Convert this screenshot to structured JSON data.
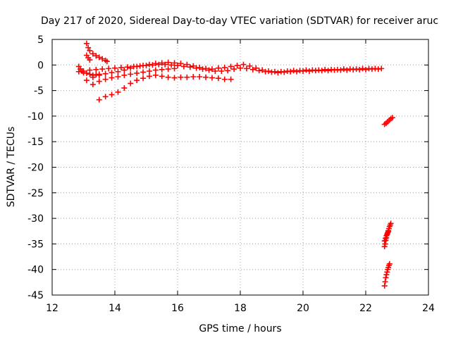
{
  "chart_data": {
    "type": "scatter",
    "title": "Day 217 of 2020, Sidereal Day-to-day VTEC variation (SDTVAR) for receiver aruc",
    "xlabel": "GPS time / hours",
    "ylabel": "SDTVAR / TECUs",
    "xlim": [
      12,
      24
    ],
    "ylim": [
      -45,
      5
    ],
    "xticks": [
      "12",
      "14",
      "16",
      "18",
      "20",
      "22",
      "24"
    ],
    "yticks": [
      "5",
      "0",
      "-5",
      "-10",
      "-15",
      "-20",
      "-25",
      "-30",
      "-35",
      "-40",
      "-45"
    ],
    "xtick_values": [
      12,
      14,
      16,
      18,
      20,
      22,
      24
    ],
    "ytick_values": [
      5,
      0,
      -5,
      -10,
      -15,
      -20,
      -25,
      -30,
      -35,
      -40,
      -45
    ],
    "grid": true,
    "legend": "none",
    "marker": "plus",
    "color": "#ff0000",
    "series": [
      {
        "points": [
          [
            13.1,
            4.2
          ],
          [
            13.15,
            3.4
          ],
          [
            13.2,
            2.8
          ],
          [
            13.3,
            2.2
          ],
          [
            13.4,
            1.8
          ],
          [
            13.5,
            1.5
          ],
          [
            13.6,
            1.2
          ],
          [
            13.7,
            0.9
          ],
          [
            13.75,
            0.7
          ]
        ]
      },
      {
        "points": [
          [
            13.1,
            1.9
          ],
          [
            13.15,
            1.4
          ],
          [
            13.2,
            1.0
          ]
        ]
      },
      {
        "points": [
          [
            12.85,
            -0.3
          ],
          [
            12.9,
            -0.8
          ],
          [
            12.95,
            -1.2
          ],
          [
            13.0,
            -1.5
          ],
          [
            13.1,
            -1.6
          ],
          [
            13.2,
            -1.8
          ],
          [
            13.3,
            -2.0
          ],
          [
            13.4,
            -1.9
          ],
          [
            13.5,
            -1.8
          ]
        ]
      },
      {
        "points": [
          [
            13.1,
            -3.0
          ],
          [
            13.3,
            -2.4
          ],
          [
            13.5,
            -2.0
          ],
          [
            13.7,
            -1.7
          ],
          [
            13.9,
            -1.5
          ],
          [
            14.1,
            -1.3
          ],
          [
            14.3,
            -1.0
          ],
          [
            14.5,
            -0.6
          ],
          [
            14.7,
            -0.3
          ],
          [
            14.9,
            -0.1
          ],
          [
            15.1,
            0.1
          ],
          [
            15.3,
            0.3
          ],
          [
            15.5,
            0.4
          ],
          [
            15.7,
            0.5
          ],
          [
            15.9,
            0.4
          ],
          [
            16.1,
            0.3
          ],
          [
            16.3,
            0.1
          ],
          [
            16.5,
            -0.2
          ],
          [
            16.7,
            -0.5
          ],
          [
            16.9,
            -0.7
          ],
          [
            17.1,
            -0.8
          ],
          [
            17.3,
            -0.6
          ],
          [
            17.5,
            -0.5
          ],
          [
            17.7,
            -0.3
          ],
          [
            17.9,
            -0.1
          ],
          [
            18.1,
            0.1
          ],
          [
            18.3,
            -0.2
          ],
          [
            18.5,
            -0.6
          ],
          [
            18.7,
            -1.0
          ],
          [
            18.9,
            -1.2
          ],
          [
            19.1,
            -1.3
          ],
          [
            19.3,
            -1.3
          ],
          [
            19.5,
            -1.2
          ],
          [
            19.7,
            -1.1
          ],
          [
            19.9,
            -1.1
          ],
          [
            20.1,
            -1.0
          ],
          [
            20.3,
            -1.0
          ],
          [
            20.5,
            -1.0
          ],
          [
            20.7,
            -0.9
          ],
          [
            20.9,
            -0.9
          ],
          [
            21.1,
            -0.9
          ],
          [
            21.3,
            -0.8
          ],
          [
            21.5,
            -0.8
          ],
          [
            21.7,
            -0.8
          ],
          [
            21.9,
            -0.7
          ],
          [
            22.1,
            -0.7
          ],
          [
            22.3,
            -0.7
          ],
          [
            22.5,
            -0.7
          ]
        ]
      },
      {
        "points": [
          [
            12.85,
            -1.3
          ],
          [
            13.0,
            -1.2
          ],
          [
            13.2,
            -1.0
          ],
          [
            13.4,
            -0.9
          ],
          [
            13.6,
            -0.8
          ],
          [
            13.8,
            -0.7
          ],
          [
            14.0,
            -0.6
          ],
          [
            14.2,
            -0.5
          ],
          [
            14.4,
            -0.4
          ],
          [
            14.6,
            -0.3
          ],
          [
            14.8,
            -0.2
          ],
          [
            15.0,
            -0.1
          ],
          [
            15.2,
            0.0
          ],
          [
            15.4,
            0.1
          ],
          [
            15.6,
            0.1
          ],
          [
            15.8,
            0.0
          ],
          [
            16.0,
            -0.1
          ],
          [
            16.2,
            -0.3
          ],
          [
            16.4,
            -0.4
          ],
          [
            16.6,
            -0.6
          ],
          [
            16.8,
            -0.8
          ],
          [
            17.0,
            -1.0
          ],
          [
            17.2,
            -1.2
          ],
          [
            17.4,
            -1.2
          ],
          [
            17.6,
            -1.1
          ],
          [
            17.8,
            -0.8
          ],
          [
            18.0,
            -0.6
          ],
          [
            18.2,
            -0.7
          ],
          [
            18.4,
            -0.9
          ],
          [
            18.6,
            -1.1
          ],
          [
            18.8,
            -1.3
          ],
          [
            19.0,
            -1.4
          ],
          [
            19.2,
            -1.5
          ],
          [
            19.4,
            -1.4
          ],
          [
            19.6,
            -1.3
          ],
          [
            19.8,
            -1.3
          ],
          [
            20.0,
            -1.2
          ],
          [
            20.2,
            -1.2
          ],
          [
            20.4,
            -1.1
          ],
          [
            20.6,
            -1.1
          ],
          [
            20.8,
            -1.1
          ],
          [
            21.0,
            -1.0
          ],
          [
            21.2,
            -1.0
          ],
          [
            21.4,
            -1.0
          ],
          [
            21.6,
            -0.9
          ],
          [
            21.8,
            -0.9
          ],
          [
            22.0,
            -0.9
          ],
          [
            22.2,
            -0.8
          ],
          [
            22.4,
            -0.8
          ]
        ]
      },
      {
        "points": [
          [
            13.3,
            -3.8
          ],
          [
            13.5,
            -3.2
          ],
          [
            13.7,
            -2.8
          ],
          [
            13.9,
            -2.5
          ],
          [
            14.1,
            -2.3
          ],
          [
            14.3,
            -2.0
          ],
          [
            14.5,
            -1.8
          ],
          [
            14.7,
            -1.6
          ],
          [
            14.9,
            -1.4
          ],
          [
            15.1,
            -1.2
          ],
          [
            15.3,
            -1.0
          ],
          [
            15.5,
            -0.9
          ],
          [
            15.7,
            -0.8
          ],
          [
            15.9,
            -0.7
          ]
        ]
      },
      {
        "points": [
          [
            13.5,
            -6.8
          ],
          [
            13.7,
            -6.2
          ],
          [
            13.9,
            -5.8
          ],
          [
            14.1,
            -5.3
          ],
          [
            14.3,
            -4.5
          ],
          [
            14.5,
            -3.6
          ],
          [
            14.7,
            -3.0
          ],
          [
            14.9,
            -2.6
          ],
          [
            15.1,
            -2.2
          ],
          [
            15.3,
            -2.0
          ],
          [
            15.5,
            -2.2
          ],
          [
            15.7,
            -2.4
          ],
          [
            15.9,
            -2.5
          ],
          [
            16.1,
            -2.4
          ],
          [
            16.3,
            -2.4
          ],
          [
            16.5,
            -2.3
          ],
          [
            16.7,
            -2.3
          ],
          [
            16.9,
            -2.4
          ],
          [
            17.1,
            -2.5
          ],
          [
            17.3,
            -2.6
          ],
          [
            17.5,
            -2.8
          ],
          [
            17.7,
            -2.8
          ]
        ]
      },
      {
        "points": [
          [
            22.6,
            -11.6
          ],
          [
            22.65,
            -11.4
          ],
          [
            22.7,
            -11.1
          ],
          [
            22.75,
            -10.8
          ],
          [
            22.8,
            -10.5
          ],
          [
            22.85,
            -10.3
          ]
        ]
      },
      {
        "points": [
          [
            22.6,
            -35.5
          ],
          [
            22.62,
            -35.0
          ],
          [
            22.64,
            -34.3
          ],
          [
            22.66,
            -33.8
          ],
          [
            22.68,
            -33.2
          ],
          [
            22.7,
            -32.8
          ],
          [
            22.72,
            -32.4
          ],
          [
            22.74,
            -32.0
          ],
          [
            22.76,
            -31.6
          ],
          [
            22.78,
            -31.3
          ],
          [
            22.8,
            -31.0
          ]
        ]
      },
      {
        "points": [
          [
            22.6,
            -34.4
          ],
          [
            22.63,
            -33.9
          ],
          [
            22.66,
            -33.4
          ],
          [
            22.69,
            -33.0
          ],
          [
            22.72,
            -32.6
          ]
        ]
      },
      {
        "points": [
          [
            22.6,
            -43.2
          ],
          [
            22.62,
            -42.4
          ],
          [
            22.64,
            -41.6
          ],
          [
            22.66,
            -41.0
          ],
          [
            22.68,
            -40.5
          ],
          [
            22.7,
            -40.0
          ],
          [
            22.72,
            -39.6
          ],
          [
            22.74,
            -39.2
          ],
          [
            22.76,
            -38.9
          ]
        ]
      }
    ]
  }
}
